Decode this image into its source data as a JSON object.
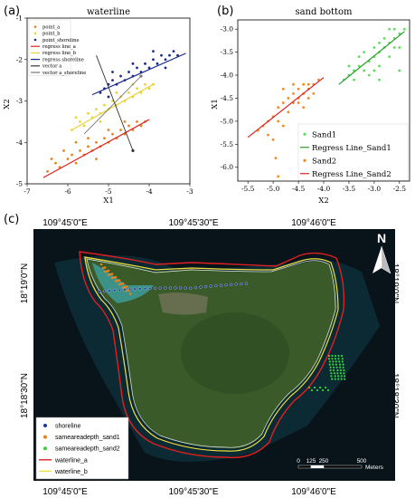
{
  "panels": {
    "a": "(a)",
    "b": "(b)",
    "c": "(c)"
  },
  "chart_data": [
    {
      "type": "scatter",
      "title": "waterline",
      "xlabel": "X1",
      "ylabel": "X2",
      "xlim": [
        -7,
        -3
      ],
      "ylim": [
        -5,
        -1
      ],
      "xticks": [
        -7,
        -6,
        -5,
        -4,
        -3
      ],
      "yticks": [
        -5,
        -4,
        -3,
        -2,
        -1
      ],
      "legend_placement": "top-left",
      "series": [
        {
          "name": "point_a",
          "kind": "scatter",
          "color": "#e8821e",
          "points": [
            [
              -6.5,
              -4.7
            ],
            [
              -6.3,
              -4.5
            ],
            [
              -6.2,
              -4.6
            ],
            [
              -6.0,
              -4.4
            ],
            [
              -5.9,
              -4.3
            ],
            [
              -5.8,
              -4.5
            ],
            [
              -5.7,
              -4.2
            ],
            [
              -5.6,
              -4.3
            ],
            [
              -5.5,
              -4.1
            ],
            [
              -5.4,
              -4.2
            ],
            [
              -5.3,
              -4.0
            ],
            [
              -5.2,
              -4.1
            ],
            [
              -5.1,
              -3.9
            ],
            [
              -5.0,
              -4.0
            ],
            [
              -4.9,
              -3.8
            ],
            [
              -4.8,
              -3.9
            ],
            [
              -4.7,
              -3.7
            ],
            [
              -4.6,
              -3.8
            ],
            [
              -4.5,
              -3.6
            ],
            [
              -4.4,
              -3.7
            ],
            [
              -4.3,
              -3.5
            ],
            [
              -4.2,
              -3.6
            ],
            [
              -4.1,
              -3.5
            ],
            [
              -6.1,
              -4.2
            ],
            [
              -5.8,
              -4.0
            ],
            [
              -5.3,
              -4.4
            ],
            [
              -5.0,
              -3.7
            ],
            [
              -4.6,
              -3.5
            ],
            [
              -6.4,
              -4.4
            ],
            [
              -5.5,
              -3.9
            ]
          ]
        },
        {
          "name": "point_b",
          "kind": "scatter",
          "color": "#ead23a",
          "points": [
            [
              -5.9,
              -3.7
            ],
            [
              -5.7,
              -3.5
            ],
            [
              -5.6,
              -3.6
            ],
            [
              -5.5,
              -3.3
            ],
            [
              -5.4,
              -3.4
            ],
            [
              -5.3,
              -3.2
            ],
            [
              -5.2,
              -3.3
            ],
            [
              -5.1,
              -3.1
            ],
            [
              -5.0,
              -3.2
            ],
            [
              -4.9,
              -3.0
            ],
            [
              -4.8,
              -3.1
            ],
            [
              -4.7,
              -2.9
            ],
            [
              -4.6,
              -3.0
            ],
            [
              -4.5,
              -2.8
            ],
            [
              -4.4,
              -2.9
            ],
            [
              -4.3,
              -2.7
            ],
            [
              -4.2,
              -2.8
            ],
            [
              -4.1,
              -2.6
            ],
            [
              -4.0,
              -2.7
            ],
            [
              -3.9,
              -2.6
            ],
            [
              -5.8,
              -3.4
            ],
            [
              -5.2,
              -3.5
            ],
            [
              -4.8,
              -2.8
            ],
            [
              -4.4,
              -2.6
            ],
            [
              -5.0,
              -2.9
            ]
          ]
        },
        {
          "name": "point_shoreline",
          "kind": "scatter",
          "color": "#1a2a8c",
          "points": [
            [
              -5.2,
              -2.8
            ],
            [
              -5.1,
              -2.7
            ],
            [
              -5.0,
              -2.6
            ],
            [
              -4.9,
              -2.5
            ],
            [
              -4.8,
              -2.6
            ],
            [
              -4.7,
              -2.4
            ],
            [
              -4.6,
              -2.5
            ],
            [
              -4.5,
              -2.3
            ],
            [
              -4.4,
              -2.4
            ],
            [
              -4.3,
              -2.2
            ],
            [
              -4.2,
              -2.3
            ],
            [
              -4.1,
              -2.1
            ],
            [
              -4.0,
              -2.2
            ],
            [
              -3.9,
              -2.0
            ],
            [
              -3.8,
              -2.1
            ],
            [
              -3.7,
              -1.9
            ],
            [
              -3.6,
              -2.0
            ],
            [
              -3.5,
              -1.9
            ],
            [
              -3.4,
              -1.8
            ],
            [
              -3.3,
              -1.9
            ],
            [
              -4.9,
              -2.3
            ],
            [
              -4.4,
              -2.1
            ],
            [
              -3.9,
              -1.8
            ],
            [
              -3.6,
              -2.2
            ],
            [
              -5.0,
              -2.9
            ]
          ]
        },
        {
          "name": "regress line_a",
          "kind": "line",
          "color": "#e02020",
          "x": [
            -6.6,
            -4.0
          ],
          "y": [
            -4.85,
            -3.45
          ]
        },
        {
          "name": "regress line_b",
          "kind": "line",
          "color": "#ead23a",
          "x": [
            -5.9,
            -3.9
          ],
          "y": [
            -3.7,
            -2.6
          ]
        },
        {
          "name": "regress shoreline",
          "kind": "line",
          "color": "#1a2a8c",
          "x": [
            -5.4,
            -3.1
          ],
          "y": [
            -2.85,
            -1.85
          ]
        },
        {
          "name": "vector a",
          "kind": "line",
          "color": "#333333",
          "x": [
            -5.3,
            -4.4
          ],
          "y": [
            -1.9,
            -4.2
          ]
        },
        {
          "name": "vector a_shoreline",
          "kind": "line",
          "color": "#777777",
          "x": [
            -5.6,
            -4.2
          ],
          "y": [
            -3.8,
            -2.4
          ]
        }
      ]
    },
    {
      "type": "scatter",
      "title": "sand bottom",
      "xlabel": "X2",
      "ylabel": "X1",
      "xlim": [
        -5.7,
        -2.3
      ],
      "ylim": [
        -6.3,
        -2.8
      ],
      "xticks": [
        -5.5,
        -5.0,
        -4.5,
        -4.0,
        -3.5,
        -3.0,
        -2.5
      ],
      "yticks": [
        -6.0,
        -5.5,
        -5.0,
        -4.5,
        -4.0,
        -3.5,
        -3.0
      ],
      "xtick_labels": [
        "-5.5",
        "-5.0",
        "-4.5",
        "-4.0",
        "-3.5",
        "-3.0",
        "-2.5"
      ],
      "ytick_labels": [
        "-6.0",
        "-5.5",
        "-5.0",
        "-4.5",
        "-4.0",
        "-3.5",
        "-3.0"
      ],
      "legend_placement": "bottom-right",
      "series": [
        {
          "name": "Sand1",
          "kind": "scatter",
          "color": "#5ddc5d",
          "points": [
            [
              -3.6,
              -4.1
            ],
            [
              -3.5,
              -4.0
            ],
            [
              -3.4,
              -3.9
            ],
            [
              -3.3,
              -3.8
            ],
            [
              -3.2,
              -3.9
            ],
            [
              -3.1,
              -3.7
            ],
            [
              -3.0,
              -3.6
            ],
            [
              -2.9,
              -3.5
            ],
            [
              -2.8,
              -3.4
            ],
            [
              -2.7,
              -3.3
            ],
            [
              -2.6,
              -3.2
            ],
            [
              -2.5,
              -3.1
            ],
            [
              -3.3,
              -3.6
            ],
            [
              -3.0,
              -3.4
            ],
            [
              -2.8,
              -3.2
            ],
            [
              -2.6,
              -3.0
            ],
            [
              -3.4,
              -4.1
            ],
            [
              -3.1,
              -4.0
            ],
            [
              -2.9,
              -3.8
            ],
            [
              -2.7,
              -3.6
            ],
            [
              -2.5,
              -3.4
            ],
            [
              -3.2,
              -3.5
            ],
            [
              -2.9,
              -3.3
            ],
            [
              -2.6,
              -3.4
            ],
            [
              -2.9,
              -4.1
            ],
            [
              -2.5,
              -3.9
            ],
            [
              -3.5,
              -3.8
            ],
            [
              -2.7,
              -3.0
            ],
            [
              -2.4,
              -3.0
            ],
            [
              -3.0,
              -3.9
            ]
          ]
        },
        {
          "name": "Regress Line_Sand1",
          "kind": "line",
          "color": "#2aa02a",
          "x": [
            -3.7,
            -2.4
          ],
          "y": [
            -4.2,
            -3.05
          ]
        },
        {
          "name": "Sand2",
          "kind": "scatter",
          "color": "#f08a1e",
          "points": [
            [
              -5.3,
              -5.2
            ],
            [
              -5.2,
              -5.1
            ],
            [
              -5.1,
              -5.0
            ],
            [
              -5.0,
              -4.9
            ],
            [
              -4.9,
              -4.7
            ],
            [
              -4.8,
              -4.6
            ],
            [
              -4.7,
              -4.5
            ],
            [
              -4.6,
              -4.4
            ],
            [
              -4.5,
              -4.3
            ],
            [
              -4.4,
              -4.2
            ],
            [
              -4.3,
              -4.3
            ],
            [
              -4.2,
              -4.2
            ],
            [
              -4.1,
              -4.1
            ],
            [
              -4.8,
              -4.3
            ],
            [
              -4.6,
              -4.2
            ],
            [
              -4.4,
              -4.4
            ],
            [
              -4.3,
              -4.5
            ],
            [
              -4.5,
              -4.6
            ],
            [
              -4.7,
              -4.8
            ],
            [
              -4.9,
              -5.0
            ],
            [
              -5.0,
              -5.4
            ],
            [
              -4.95,
              -5.8
            ],
            [
              -4.9,
              -6.2
            ],
            [
              -4.5,
              -4.5
            ],
            [
              -4.2,
              -4.4
            ],
            [
              -4.6,
              -4.6
            ],
            [
              -4.4,
              -4.7
            ],
            [
              -5.1,
              -5.3
            ],
            [
              -4.8,
              -5.1
            ],
            [
              -4.3,
              -4.2
            ]
          ]
        },
        {
          "name": "Regress Line_Sand2",
          "kind": "line",
          "color": "#e02020",
          "x": [
            -5.5,
            -4.0
          ],
          "y": [
            -5.35,
            -4.05
          ]
        }
      ]
    }
  ],
  "map": {
    "top_ticks": [
      "109°45'0\"E",
      "109°45'30\"E",
      "109°46'0\"E"
    ],
    "bottom_ticks": [
      "109°45'0\"E",
      "109°45'30\"E",
      "109°46'0\"E"
    ],
    "left_ticks": [
      "18°19'0\"N",
      "18°18'30\"N"
    ],
    "right_ticks": [
      "18°19'0\"N",
      "18°18'30\"N"
    ],
    "north_label": "N",
    "legend": [
      {
        "label": "shoreline",
        "color": "#1a3a9c",
        "kind": "dot"
      },
      {
        "label": "sameareadepth_sand1",
        "color": "#e8821e",
        "kind": "dot"
      },
      {
        "label": "sameareadepth_sand2",
        "color": "#3ad23a",
        "kind": "dot"
      },
      {
        "label": "waterline_a",
        "color": "#e02020",
        "kind": "line"
      },
      {
        "label": "waterline_b",
        "color": "#f0e040",
        "kind": "line"
      }
    ],
    "scalebar": {
      "labels": [
        "0",
        "125",
        "250",
        "500"
      ],
      "unit": "Meters"
    }
  }
}
